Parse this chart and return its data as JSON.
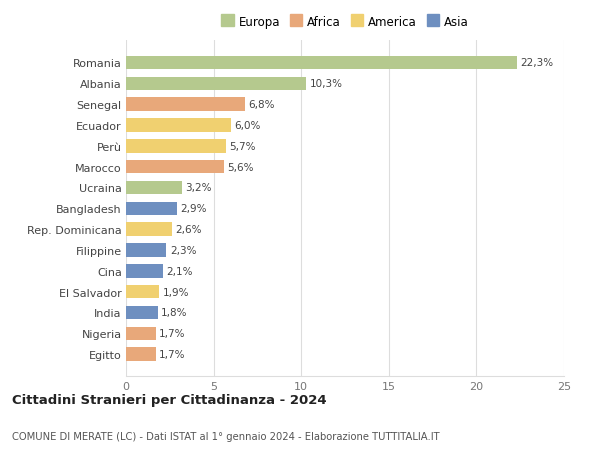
{
  "countries": [
    "Romania",
    "Albania",
    "Senegal",
    "Ecuador",
    "Perù",
    "Marocco",
    "Ucraina",
    "Bangladesh",
    "Rep. Dominicana",
    "Filippine",
    "Cina",
    "El Salvador",
    "India",
    "Nigeria",
    "Egitto"
  ],
  "values": [
    22.3,
    10.3,
    6.8,
    6.0,
    5.7,
    5.6,
    3.2,
    2.9,
    2.6,
    2.3,
    2.1,
    1.9,
    1.8,
    1.7,
    1.7
  ],
  "labels": [
    "22,3%",
    "10,3%",
    "6,8%",
    "6,0%",
    "5,7%",
    "5,6%",
    "3,2%",
    "2,9%",
    "2,6%",
    "2,3%",
    "2,1%",
    "1,9%",
    "1,8%",
    "1,7%",
    "1,7%"
  ],
  "continents": [
    "Europa",
    "Europa",
    "Africa",
    "America",
    "America",
    "Africa",
    "Europa",
    "Asia",
    "America",
    "Asia",
    "Asia",
    "America",
    "Asia",
    "Africa",
    "Africa"
  ],
  "colors": {
    "Europa": "#b5c98e",
    "Africa": "#e8a87a",
    "America": "#f0d070",
    "Asia": "#6e8fc0"
  },
  "title": "Cittadini Stranieri per Cittadinanza - 2024",
  "subtitle": "COMUNE DI MERATE (LC) - Dati ISTAT al 1° gennaio 2024 - Elaborazione TUTTITALIA.IT",
  "xlim": [
    0,
    25
  ],
  "xticks": [
    0,
    5,
    10,
    15,
    20,
    25
  ],
  "background_color": "#ffffff",
  "grid_color": "#dddddd",
  "bar_height": 0.65,
  "legend_order": [
    "Europa",
    "Africa",
    "America",
    "Asia"
  ]
}
